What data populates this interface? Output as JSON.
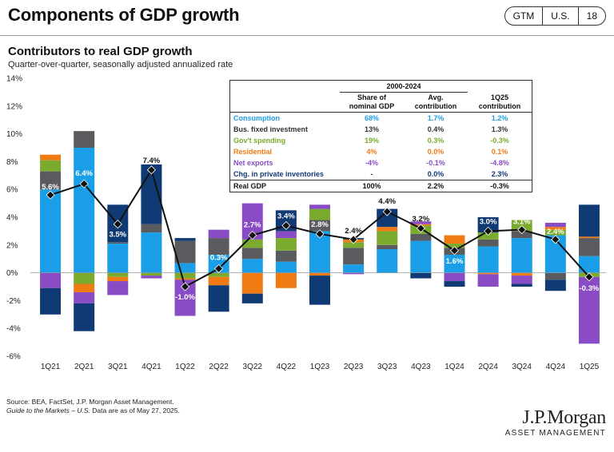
{
  "header": {
    "title": "Components of GDP growth",
    "badges": [
      "GTM",
      "U.S.",
      "18"
    ]
  },
  "chart_title": "Contributors to real GDP growth",
  "chart_subtitle": "Quarter-over-quarter, seasonally adjusted annualized rate",
  "colors": {
    "consumption": "#1a9ee8",
    "business": "#5a5b5e",
    "government": "#7bab2e",
    "residential": "#f07b12",
    "net_exports": "#8a4cc4",
    "inventories": "#103a74",
    "gdp": "#111111"
  },
  "chart_data": {
    "type": "bar",
    "stacked": true,
    "categories": [
      "1Q21",
      "2Q21",
      "3Q21",
      "4Q21",
      "1Q22",
      "2Q22",
      "3Q22",
      "4Q22",
      "1Q23",
      "2Q23",
      "3Q23",
      "4Q23",
      "1Q24",
      "2Q24",
      "3Q24",
      "4Q24",
      "1Q25"
    ],
    "ylim": [
      -6,
      14
    ],
    "yticks": [
      -6,
      -4,
      -2,
      0,
      2,
      4,
      6,
      8,
      10,
      12,
      14
    ],
    "ytick_labels": [
      "-6%",
      "-4%",
      "-2%",
      "0%",
      "2%",
      "4%",
      "6%",
      "8%",
      "10%",
      "12%",
      "14%"
    ],
    "series": [
      {
        "name": "Consumption",
        "key": "consumption",
        "values": [
          6.0,
          9.0,
          2.1,
          2.9,
          0.7,
          1.3,
          1.0,
          0.8,
          3.0,
          0.6,
          1.7,
          2.3,
          1.3,
          1.9,
          2.5,
          2.7,
          1.2
        ]
      },
      {
        "name": "Bus. fixed investment",
        "key": "business",
        "values": [
          1.3,
          1.2,
          0.1,
          0.6,
          1.6,
          1.2,
          0.8,
          0.8,
          0.8,
          1.2,
          0.3,
          0.5,
          0.5,
          0.5,
          0.5,
          -0.5,
          1.3
        ]
      },
      {
        "name": "Gov't spending",
        "key": "government",
        "values": [
          0.8,
          -0.8,
          -0.3,
          -0.2,
          -0.4,
          -0.3,
          0.6,
          0.9,
          0.8,
          0.4,
          1.0,
          0.6,
          0.3,
          0.5,
          0.8,
          0.4,
          -0.3
        ]
      },
      {
        "name": "Residential",
        "key": "residential",
        "values": [
          0.4,
          -0.6,
          -0.3,
          0.0,
          -0.1,
          -0.6,
          -1.5,
          -1.1,
          -0.2,
          0.2,
          0.3,
          0.1,
          0.6,
          -0.1,
          -0.2,
          0.2,
          0.1
        ]
      },
      {
        "name": "Net exports",
        "key": "net_exports",
        "values": [
          -1.1,
          -0.8,
          -1.0,
          -0.2,
          -2.6,
          0.6,
          2.6,
          0.5,
          0.3,
          -0.1,
          0.0,
          0.2,
          -0.6,
          -0.9,
          -0.6,
          0.3,
          -4.8
        ]
      },
      {
        "name": "Chg. in private inventories",
        "key": "inventories",
        "values": [
          -1.9,
          -2.0,
          2.7,
          4.3,
          0.2,
          -1.9,
          -0.7,
          1.5,
          -2.1,
          0.1,
          1.3,
          -0.4,
          -0.4,
          1.1,
          -0.2,
          -0.8,
          2.3
        ]
      }
    ],
    "gdp": {
      "name": "Real GDP",
      "values": [
        5.6,
        6.4,
        3.5,
        7.4,
        -1.0,
        0.3,
        2.7,
        3.4,
        2.8,
        2.4,
        4.4,
        3.2,
        1.6,
        3.0,
        3.1,
        2.4,
        -0.3
      ],
      "labels": [
        "5.6%",
        "6.4%",
        "3.5%",
        "7.4%",
        "-1.0%",
        "0.3%",
        "2.7%",
        "3.4%",
        "2.8%",
        "2.4%",
        "4.4%",
        "3.2%",
        "1.6%",
        "3.0%",
        "3.1%",
        "2.4%",
        "-0.3%"
      ]
    }
  },
  "table": {
    "span_header": "2000-2024",
    "col_headers": [
      "Share of nominal GDP",
      "Avg. contribution",
      "1Q25 contribution"
    ],
    "rows": [
      {
        "label": "Consumption",
        "share": "68%",
        "avg": "1.7%",
        "q": "1.2%"
      },
      {
        "label": "Bus. fixed investment",
        "share": "13%",
        "avg": "0.4%",
        "q": "1.3%"
      },
      {
        "label": "Gov't spending",
        "share": "19%",
        "avg": "0.3%",
        "q": "-0.3%"
      },
      {
        "label": "Residential",
        "share": "4%",
        "avg": "0.0%",
        "q": "0.1%"
      },
      {
        "label": "Net exports",
        "share": "-4%",
        "avg": "-0.1%",
        "q": "-4.8%"
      },
      {
        "label": "Chg. in private inventories",
        "share": "-",
        "avg": "0.0%",
        "q": "2.3%"
      }
    ],
    "total": {
      "label": "Real GDP",
      "share": "100%",
      "avg": "2.2%",
      "q": "-0.3%"
    }
  },
  "source": {
    "line1": "Source: BEA, FactSet, J.P. Morgan Asset Management.",
    "guide": "Guide to the Markets – U.S.",
    "line2_rest": " Data are as of May 27, 2025."
  },
  "logo": {
    "main": "J.P.Morgan",
    "sub": "ASSET MANAGEMENT"
  }
}
